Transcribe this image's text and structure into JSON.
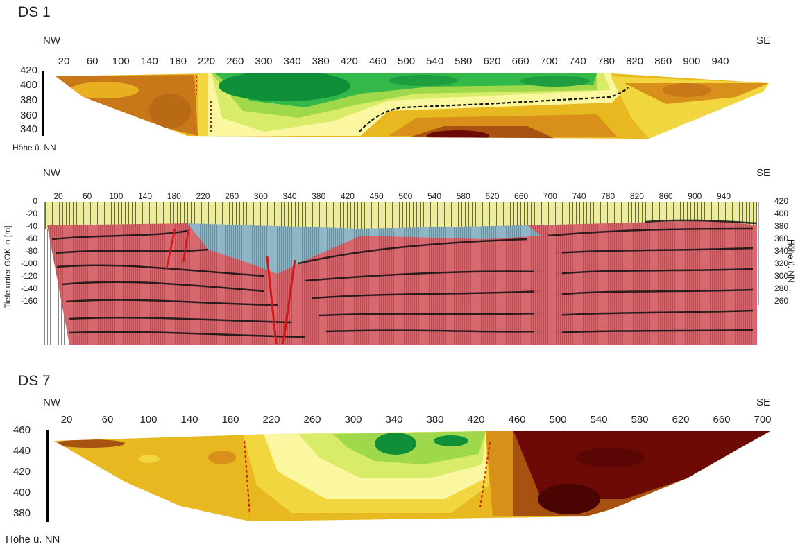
{
  "panel1": {
    "title": "DS 1",
    "left_dir": "NW",
    "right_dir": "SE",
    "x_ticks": [
      "20",
      "60",
      "100",
      "140",
      "180",
      "220",
      "260",
      "300",
      "340",
      "380",
      "420",
      "460",
      "500",
      "540",
      "580",
      "620",
      "660",
      "700",
      "740",
      "780",
      "820",
      "860",
      "900",
      "940"
    ],
    "y_ticks": [
      "420",
      "400",
      "380",
      "360",
      "340"
    ],
    "y_label": "Höhe ü. NN"
  },
  "panel2": {
    "left_dir": "NW",
    "right_dir": "SE",
    "x_ticks": [
      "20",
      "60",
      "100",
      "140",
      "180",
      "220",
      "260",
      "300",
      "340",
      "380",
      "420",
      "460",
      "500",
      "540",
      "580",
      "620",
      "660",
      "700",
      "740",
      "780",
      "820",
      "860",
      "900",
      "940"
    ],
    "y_ticks_left": [
      "0",
      "-20",
      "-40",
      "-60",
      "-80",
      "-100",
      "-120",
      "-140",
      "-160"
    ],
    "y_ticks_right": [
      "420",
      "400",
      "380",
      "360",
      "340",
      "320",
      "300",
      "280",
      "260"
    ],
    "y_label_left": "Tiefe unter GOK in [m]",
    "y_label_right": "Höhe ü. NN"
  },
  "panel3": {
    "title": "DS 7",
    "left_dir": "NW",
    "right_dir": "SE",
    "x_ticks": [
      "20",
      "60",
      "100",
      "140",
      "180",
      "220",
      "260",
      "300",
      "340",
      "380",
      "420",
      "460",
      "500",
      "540",
      "580",
      "620",
      "660",
      "700"
    ],
    "y_ticks": [
      "460",
      "440",
      "420",
      "400",
      "380"
    ],
    "y_label": "Höhe ü. NN"
  },
  "colors": {
    "dark_green": "#0f8f3a",
    "green": "#33b84a",
    "light_green": "#9fd84a",
    "yellow_green": "#d8ec6a",
    "pale_yellow": "#fbf7a0",
    "yellow": "#f2d640",
    "gold": "#e8b820",
    "orange": "#d8901a",
    "brown": "#a85212",
    "dark_red": "#6e0a06",
    "seismic_red": "#d9686e",
    "seismic_blue": "#8fb6c6",
    "seismic_yellow": "#ecec9a",
    "fault_red": "#d01818",
    "dashed_black": "#111111"
  }
}
